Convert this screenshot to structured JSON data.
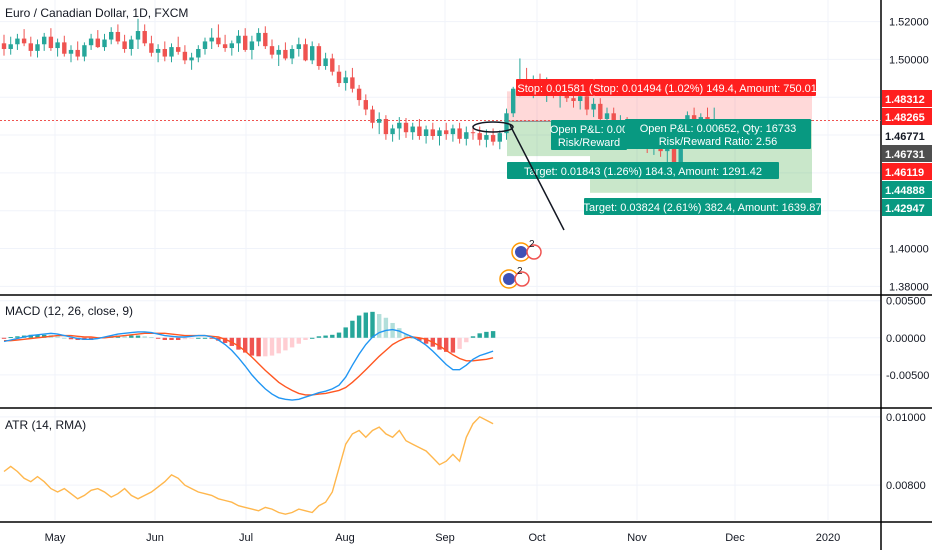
{
  "pane_labels": {
    "main": "Euro / Canadian Dollar, 1D, FXCM",
    "macd": "MACD (12, 26, close, 9)",
    "atr": "ATR (14, RMA)"
  },
  "colors": {
    "up": "#26a69a",
    "down": "#ef5350",
    "macd_line": "#2196f3",
    "signal_line": "#ff5722",
    "hist_up_strong": "#26a69a",
    "hist_up_weak": "#b2dfdb",
    "hist_down_strong": "#ef5350",
    "hist_down_weak": "#ffcdd2",
    "atr_line": "#ffb74d",
    "stop_tag": "#ff1f1f",
    "target_tag": "#089981",
    "last_price_tag": "#4f4f4f"
  },
  "chart_data": [
    {
      "type": "candlestick",
      "pane": "main",
      "title": "Euro / Canadian Dollar, 1D, FXCM",
      "x_ticks": [
        "May",
        "Jun",
        "Jul",
        "Aug",
        "Sep",
        "Oct",
        "Nov",
        "Dec",
        "2020"
      ],
      "y_ticks": [
        1.52,
        1.5,
        1.48,
        1.46,
        1.44,
        1.42,
        1.4,
        1.38
      ],
      "y_tick_labels": [
        "1.52000",
        "1.50000",
        "1.48000",
        "1.46000",
        "1.44000",
        "1.42000",
        "1.40000",
        "1.38000"
      ],
      "ylim": [
        1.3765,
        1.5314
      ],
      "dashed_price_line": 1.46771,
      "price_tags": [
        {
          "label": "1.48312",
          "value": 1.48312,
          "kind": "stop"
        },
        {
          "label": "1.48265",
          "value": 1.48265,
          "kind": "stop"
        },
        {
          "label": "1.46771",
          "value": 1.46771,
          "kind": "plain"
        },
        {
          "label": "1.46731",
          "value": 1.46731,
          "kind": "last"
        },
        {
          "label": "1.46119",
          "value": 1.46119,
          "kind": "stop"
        },
        {
          "label": "1.44888",
          "value": 1.44888,
          "kind": "target"
        },
        {
          "label": "1.42947",
          "value": 1.42947,
          "kind": "target"
        }
      ],
      "positions": [
        {
          "entry": 1.46731,
          "stop": 1.48312,
          "target": 1.44888,
          "stop_label": "Stop: 0.01581 (",
          "target_label": "Target: 0.01843 (1.26%) 184.3, Amount: 1291.42",
          "pnl_label": "Open P&L: 0.00",
          "rr_label": "Risk/Reward"
        },
        {
          "entry": 1.46771,
          "stop": 1.48265,
          "target": 1.42947,
          "stop_label": "Stop: 0.01494 (1.02%) 149.4, Amount: 750.01",
          "target_label": "Target: 0.03824 (2.61%) 382.4, Amount: 1639.87",
          "pnl_label": "Open P&L: 0.00652, Qty: 16733",
          "rr_label": "Risk/Reward Ratio: 2.56"
        }
      ],
      "event_badges": [
        "2",
        "2"
      ],
      "candles": [
        [
          1.5085,
          1.513,
          1.502,
          1.5055
        ],
        [
          1.5055,
          1.512,
          1.5025,
          1.508
        ],
        [
          1.508,
          1.5135,
          1.505,
          1.511
        ],
        [
          1.511,
          1.516,
          1.507,
          1.5085
        ],
        [
          1.5085,
          1.512,
          1.5015,
          1.5045
        ],
        [
          1.5045,
          1.5105,
          1.501,
          1.508
        ],
        [
          1.508,
          1.514,
          1.5045,
          1.512
        ],
        [
          1.512,
          1.5165,
          1.5045,
          1.506
        ],
        [
          1.506,
          1.511,
          1.5015,
          1.509
        ],
        [
          1.509,
          1.5125,
          1.5015,
          1.503
        ],
        [
          1.503,
          1.5075,
          1.4985,
          1.505
        ],
        [
          1.505,
          1.5095,
          1.4995,
          1.5015
        ],
        [
          1.5015,
          1.509,
          1.499,
          1.5075
        ],
        [
          1.5075,
          1.5135,
          1.505,
          1.511
        ],
        [
          1.511,
          1.5155,
          1.506,
          1.5065
        ],
        [
          1.5065,
          1.5135,
          1.5045,
          1.5105
        ],
        [
          1.5105,
          1.517,
          1.508,
          1.5145
        ],
        [
          1.5145,
          1.5185,
          1.508,
          1.5095
        ],
        [
          1.5095,
          1.513,
          1.5035,
          1.5055
        ],
        [
          1.5055,
          1.5125,
          1.502,
          1.5105
        ],
        [
          1.5105,
          1.5215,
          1.5055,
          1.515
        ],
        [
          1.515,
          1.5185,
          1.507,
          1.5085
        ],
        [
          1.5085,
          1.5125,
          1.5015,
          1.5035
        ],
        [
          1.5035,
          1.508,
          1.4985,
          1.5055
        ],
        [
          1.5055,
          1.5095,
          1.499,
          1.5015
        ],
        [
          1.5015,
          1.5085,
          1.4985,
          1.5065
        ],
        [
          1.5065,
          1.512,
          1.5025,
          1.504
        ],
        [
          1.504,
          1.5075,
          1.4975,
          1.4995
        ],
        [
          1.4995,
          1.5035,
          1.4945,
          1.501
        ],
        [
          1.501,
          1.5075,
          1.4985,
          1.5055
        ],
        [
          1.5055,
          1.5115,
          1.5025,
          1.5095
        ],
        [
          1.5095,
          1.5165,
          1.5055,
          1.5115
        ],
        [
          1.5115,
          1.5185,
          1.5065,
          1.508
        ],
        [
          1.508,
          1.513,
          1.504,
          1.506
        ],
        [
          1.506,
          1.51,
          1.502,
          1.5085
        ],
        [
          1.5085,
          1.5155,
          1.504,
          1.5125
        ],
        [
          1.5125,
          1.5165,
          1.504,
          1.505
        ],
        [
          1.505,
          1.5125,
          1.5,
          1.5095
        ],
        [
          1.5095,
          1.5165,
          1.507,
          1.514
        ],
        [
          1.514,
          1.5175,
          1.5055,
          1.507
        ],
        [
          1.507,
          1.5105,
          1.5005,
          1.5025
        ],
        [
          1.5025,
          1.5075,
          1.4965,
          1.505
        ],
        [
          1.505,
          1.509,
          1.4995,
          1.5005
        ],
        [
          1.5005,
          1.5075,
          1.4975,
          1.5055
        ],
        [
          1.5055,
          1.5115,
          1.5015,
          1.508
        ],
        [
          1.508,
          1.511,
          1.499,
          1.4995
        ],
        [
          1.4995,
          1.5095,
          1.4975,
          1.507
        ],
        [
          1.507,
          1.5085,
          1.4945,
          1.4965
        ],
        [
          1.4965,
          1.5035,
          1.4945,
          1.5005
        ],
        [
          1.5005,
          1.503,
          1.4915,
          1.4935
        ],
        [
          1.4935,
          1.497,
          1.4855,
          1.4875
        ],
        [
          1.4875,
          1.494,
          1.4835,
          1.4905
        ],
        [
          1.4905,
          1.4955,
          1.4825,
          1.4845
        ],
        [
          1.4845,
          1.4865,
          1.4755,
          1.4785
        ],
        [
          1.4785,
          1.4815,
          1.4705,
          1.4735
        ],
        [
          1.4735,
          1.4755,
          1.4635,
          1.4665
        ],
        [
          1.4665,
          1.472,
          1.4605,
          1.4685
        ],
        [
          1.4685,
          1.4705,
          1.4575,
          1.4605
        ],
        [
          1.4605,
          1.4655,
          1.4565,
          1.4635
        ],
        [
          1.4635,
          1.4695,
          1.4575,
          1.4665
        ],
        [
          1.4665,
          1.469,
          1.4585,
          1.4615
        ],
        [
          1.4615,
          1.4665,
          1.4575,
          1.4645
        ],
        [
          1.4645,
          1.4685,
          1.4575,
          1.4595
        ],
        [
          1.4595,
          1.465,
          1.4555,
          1.463
        ],
        [
          1.463,
          1.4665,
          1.4575,
          1.4595
        ],
        [
          1.4595,
          1.464,
          1.4545,
          1.4625
        ],
        [
          1.4625,
          1.4665,
          1.4575,
          1.4605
        ],
        [
          1.4605,
          1.4655,
          1.4565,
          1.4635
        ],
        [
          1.4635,
          1.4665,
          1.4555,
          1.458
        ],
        [
          1.458,
          1.4645,
          1.4545,
          1.4615
        ],
        [
          1.4615,
          1.465,
          1.4575,
          1.461
        ],
        [
          1.461,
          1.4645,
          1.4545,
          1.4575
        ],
        [
          1.4575,
          1.463,
          1.4535,
          1.46
        ],
        [
          1.46,
          1.4635,
          1.4545,
          1.4565
        ],
        [
          1.4565,
          1.4625,
          1.4525,
          1.461
        ],
        [
          1.461,
          1.474,
          1.4575,
          1.4715
        ],
        [
          1.4715,
          1.4855,
          1.4695,
          1.4845
        ],
        [
          1.4845,
          1.5005,
          1.4805,
          1.489
        ],
        [
          1.489,
          1.4955,
          1.4835,
          1.4865
        ],
        [
          1.4865,
          1.4915,
          1.4795,
          1.4885
        ],
        [
          1.4885,
          1.4925,
          1.4815,
          1.4835
        ],
        [
          1.4835,
          1.4905,
          1.4775,
          1.486
        ],
        [
          1.486,
          1.4895,
          1.4795,
          1.4815
        ],
        [
          1.4815,
          1.4865,
          1.4745,
          1.4845
        ],
        [
          1.4845,
          1.4885,
          1.4775,
          1.4795
        ],
        [
          1.4795,
          1.484,
          1.4745,
          1.478
        ],
        [
          1.478,
          1.4835,
          1.4735,
          1.4805
        ],
        [
          1.4805,
          1.4835,
          1.4705,
          1.4735
        ],
        [
          1.4735,
          1.4795,
          1.4695,
          1.4765
        ],
        [
          1.4765,
          1.4795,
          1.4655,
          1.4685
        ],
        [
          1.4685,
          1.4745,
          1.4655,
          1.4715
        ],
        [
          1.4715,
          1.4745,
          1.4615,
          1.4645
        ],
        [
          1.4645,
          1.4705,
          1.4605,
          1.4665
        ],
        [
          1.4665,
          1.4695,
          1.4585,
          1.4605
        ],
        [
          1.4605,
          1.4655,
          1.4555,
          1.4625
        ],
        [
          1.4625,
          1.4655,
          1.4535,
          1.4565
        ],
        [
          1.4565,
          1.4615,
          1.4505,
          1.4545
        ],
        [
          1.4545,
          1.4595,
          1.4495,
          1.4565
        ],
        [
          1.4565,
          1.4605,
          1.4485,
          1.4515
        ],
        [
          1.4515,
          1.4565,
          1.4455,
          1.4535
        ],
        [
          1.4535,
          1.4575,
          1.4405,
          1.4445
        ],
        [
          1.4445,
          1.4585,
          1.4425,
          1.4565
        ],
        [
          1.4565,
          1.4725,
          1.4545,
          1.4705
        ],
        [
          1.4705,
          1.4745,
          1.4595,
          1.4625
        ],
        [
          1.4625,
          1.4715,
          1.4585,
          1.4695
        ],
        [
          1.4695,
          1.4745,
          1.4635,
          1.4665
        ],
        [
          1.4665,
          1.4745,
          1.4625,
          1.4673
        ]
      ]
    },
    {
      "type": "line",
      "pane": "macd",
      "title": "MACD (12, 26, close, 9)",
      "y_ticks": [
        0.005,
        0.0,
        -0.005
      ],
      "y_tick_labels": [
        "0.00500",
        "0.00000",
        "-0.00500"
      ],
      "ylim": [
        -0.0092,
        0.0055
      ],
      "series": [
        {
          "name": "MACD",
          "values": [
            -0.0005,
            -0.0003,
            -0.0001,
            0.0001,
            0.0003,
            0.0004,
            0.0005,
            0.0006,
            0.0005,
            0.0003,
            0.0001,
            -0.0001,
            -0.0002,
            -0.0002,
            -0.0001,
            0.0001,
            0.0003,
            0.0005,
            0.0006,
            0.0007,
            0.0008,
            0.0008,
            0.0007,
            0.0005,
            0.0003,
            0.0002,
            0.0001,
            0.0001,
            0.0002,
            0.0003,
            0.0003,
            0.0001,
            -0.0003,
            -0.0009,
            -0.0017,
            -0.0027,
            -0.0038,
            -0.005,
            -0.006,
            -0.0069,
            -0.0076,
            -0.0081,
            -0.0083,
            -0.0084,
            -0.0083,
            -0.008,
            -0.0077,
            -0.0074,
            -0.0072,
            -0.0069,
            -0.0064,
            -0.0053,
            -0.0037,
            -0.0022,
            -0.0009,
            0.0001,
            0.0007,
            0.001,
            0.0011,
            0.0009,
            0.0005,
            0.0001,
            -0.0004,
            -0.001,
            -0.0018,
            -0.0027,
            -0.0036,
            -0.0043,
            -0.0043,
            -0.0037,
            -0.0029,
            -0.0024,
            -0.0021,
            -0.0018
          ]
        },
        {
          "name": "Signal",
          "values": [
            -0.0004,
            -0.0004,
            -0.0003,
            -0.0002,
            -0.0001,
            0.0,
            0.0001,
            0.0002,
            0.0003,
            0.0003,
            0.0003,
            0.0002,
            0.0001,
            0.0001,
            0.0,
            0.0,
            0.0001,
            0.0002,
            0.0003,
            0.0004,
            0.0005,
            0.0006,
            0.0006,
            0.0006,
            0.0006,
            0.0005,
            0.0004,
            0.0003,
            0.0003,
            0.0003,
            0.0003,
            0.0002,
            0.0001,
            -0.0002,
            -0.0006,
            -0.0011,
            -0.0018,
            -0.0026,
            -0.0035,
            -0.0044,
            -0.0052,
            -0.006,
            -0.0066,
            -0.0071,
            -0.0075,
            -0.0077,
            -0.0077,
            -0.0076,
            -0.0075,
            -0.0073,
            -0.0071,
            -0.0067,
            -0.006,
            -0.0052,
            -0.0043,
            -0.0034,
            -0.0025,
            -0.0017,
            -0.0009,
            -0.0004,
            0.0,
            0.0001,
            0.0,
            -0.0002,
            -0.0006,
            -0.0011,
            -0.0017,
            -0.0023,
            -0.0028,
            -0.0031,
            -0.0031,
            -0.003,
            -0.0029,
            -0.0027
          ]
        }
      ]
    },
    {
      "type": "line",
      "pane": "atr",
      "title": "ATR (14, RMA)",
      "y_ticks": [
        0.01,
        0.008
      ],
      "y_tick_labels": [
        "0.01000",
        "0.00800"
      ],
      "ylim": [
        0.00698,
        0.0102
      ],
      "series": [
        {
          "name": "ATR",
          "values": [
            0.0084,
            0.00855,
            0.0084,
            0.0082,
            0.0081,
            0.00825,
            0.0081,
            0.0079,
            0.0078,
            0.0079,
            0.00775,
            0.0076,
            0.0077,
            0.00785,
            0.0079,
            0.0078,
            0.00765,
            0.00775,
            0.0079,
            0.0077,
            0.0076,
            0.0077,
            0.0078,
            0.00795,
            0.0081,
            0.0083,
            0.0082,
            0.008,
            0.0079,
            0.0078,
            0.00775,
            0.0077,
            0.0076,
            0.00755,
            0.0075,
            0.0074,
            0.00735,
            0.0073,
            0.00725,
            0.00735,
            0.0073,
            0.0072,
            0.00715,
            0.0072,
            0.0073,
            0.00725,
            0.0072,
            0.0074,
            0.0075,
            0.0078,
            0.0085,
            0.0092,
            0.0095,
            0.0096,
            0.0094,
            0.0096,
            0.0097,
            0.0095,
            0.0094,
            0.0096,
            0.0093,
            0.0092,
            0.0091,
            0.009,
            0.0088,
            0.0086,
            0.0087,
            0.0089,
            0.0087,
            0.0094,
            0.0098,
            0.01,
            0.0099,
            0.0098
          ]
        }
      ]
    }
  ]
}
